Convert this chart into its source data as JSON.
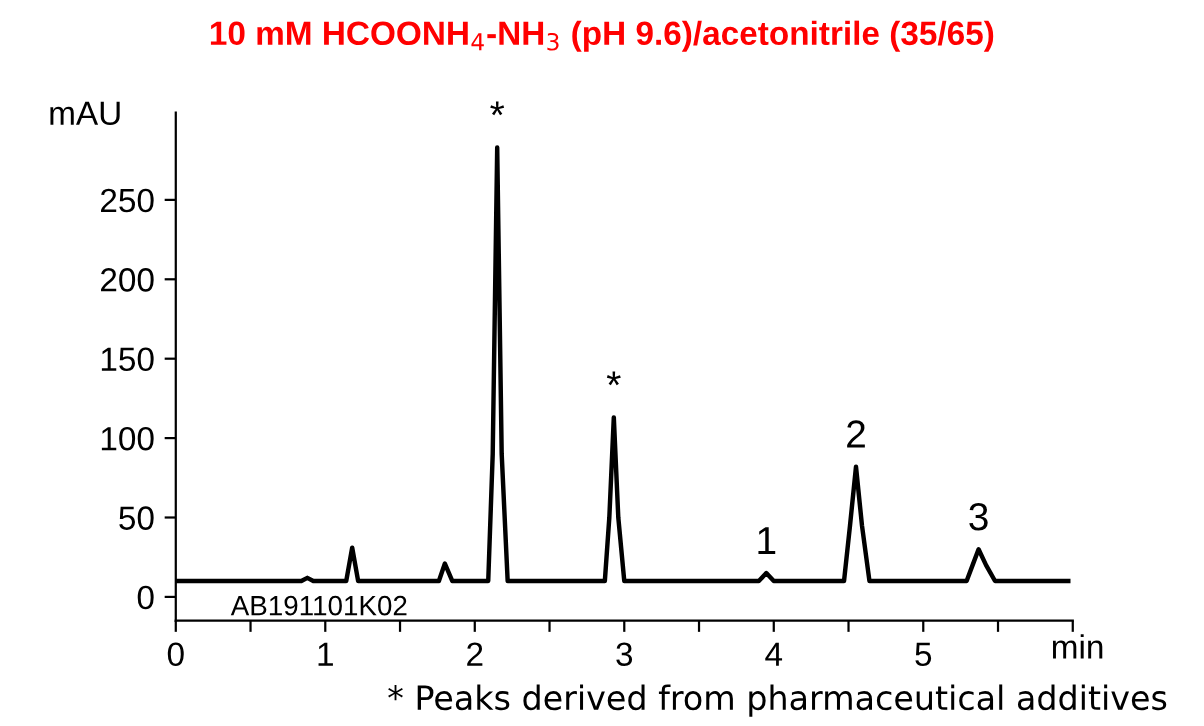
{
  "chart_data": {
    "type": "line",
    "title": "10 mM HCOONH$_{4}$-NH$_{3}$ (pH 9.6)/acetonitrile (35/65)",
    "ylabel": "mAU",
    "xlabel": "min",
    "x": [
      0,
      0.84,
      0.88,
      0.92,
      1.14,
      1.18,
      1.22,
      1.76,
      1.8,
      1.85,
      2.09,
      2.12,
      2.15,
      2.18,
      2.22,
      2.87,
      2.9,
      2.93,
      2.96,
      3.0,
      3.9,
      3.95,
      4.0,
      4.47,
      4.51,
      4.55,
      4.59,
      4.64,
      5.29,
      5.33,
      5.37,
      5.42,
      5.48,
      5.97
    ],
    "series": [
      {
        "color": "#000000",
        "values": [
          10,
          10,
          12,
          10,
          10,
          31,
          10,
          10,
          21,
          10,
          10,
          90,
          283,
          90,
          10,
          10,
          50,
          113,
          50,
          10,
          10,
          15,
          10,
          10,
          45,
          82,
          45,
          10,
          10,
          20,
          30,
          20,
          10,
          10
        ]
      }
    ],
    "xlim": [
      0,
      6
    ],
    "ylim": [
      -15,
      305
    ],
    "xticks": [
      0,
      {
        "value": 0.5,
        "label": null
      },
      1,
      {
        "value": 1.5,
        "label": null
      },
      2,
      {
        "value": 2.5,
        "label": null
      },
      3,
      {
        "value": 3.5,
        "label": null
      },
      4,
      {
        "value": 4.5,
        "label": null
      },
      5,
      {
        "value": 5.5,
        "label": null
      },
      {
        "value": 6,
        "label": null
      }
    ],
    "yticks": [
      0,
      50,
      100,
      150,
      200,
      250
    ],
    "grid": false,
    "legend": false,
    "marker": "none",
    "line_style": "solid",
    "annotations": [
      {
        "text": "*",
        "x": 2.15,
        "y": 283
      },
      {
        "text": "*",
        "x": 2.93,
        "y": 113
      },
      {
        "text": "1",
        "x": 3.95,
        "y": 15
      },
      {
        "text": "2",
        "x": 4.55,
        "y": 82
      },
      {
        "text": "3",
        "x": 5.37,
        "y": 30
      },
      "AB191101K02",
      "* Peaks derived from pharmaceutical additives"
    ]
  }
}
